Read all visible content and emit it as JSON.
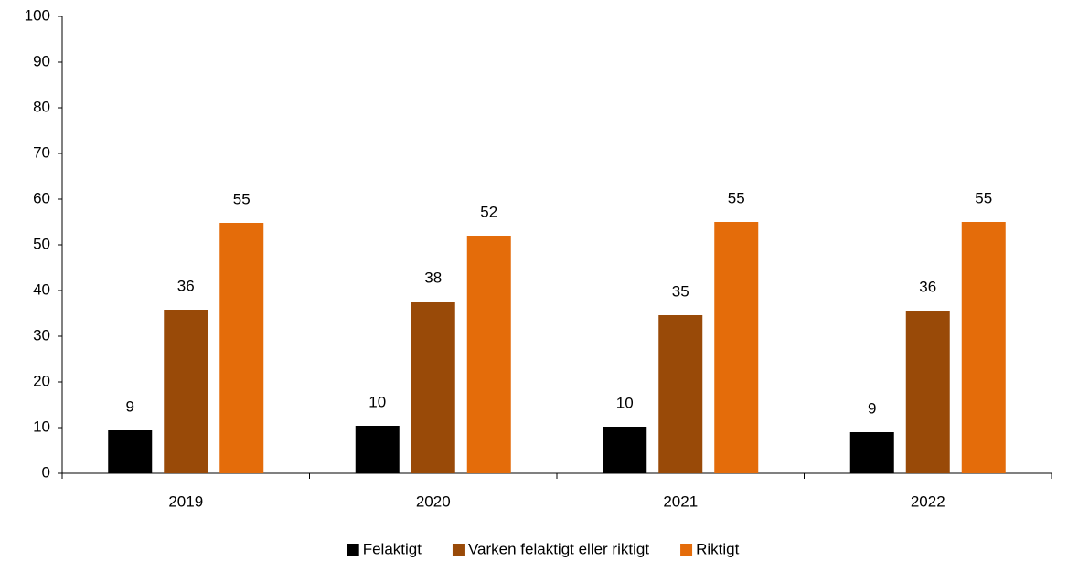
{
  "chart_data": {
    "type": "bar",
    "categories": [
      "2019",
      "2020",
      "2021",
      "2022"
    ],
    "series": [
      {
        "name": "Felaktigt",
        "color": "#000000",
        "values": [
          9.4,
          10.4,
          10.2,
          9
        ],
        "value_labels": [
          "9",
          "10",
          "10",
          "9"
        ]
      },
      {
        "name": "Varken felaktigt eller riktigt",
        "color": "#994a08",
        "values": [
          35.8,
          37.6,
          34.6,
          35.6
        ],
        "value_labels": [
          "36",
          "38",
          "35",
          "36"
        ]
      },
      {
        "name": "Riktigt",
        "color": "#e46c0a",
        "values": [
          54.8,
          52,
          55,
          55
        ],
        "value_labels": [
          "55",
          "52",
          "55",
          "55"
        ]
      }
    ],
    "ylim": [
      0,
      100
    ],
    "yticks": [
      0,
      10,
      20,
      30,
      40,
      50,
      60,
      70,
      80,
      90,
      100
    ],
    "grid": false,
    "legend": "bottom"
  }
}
